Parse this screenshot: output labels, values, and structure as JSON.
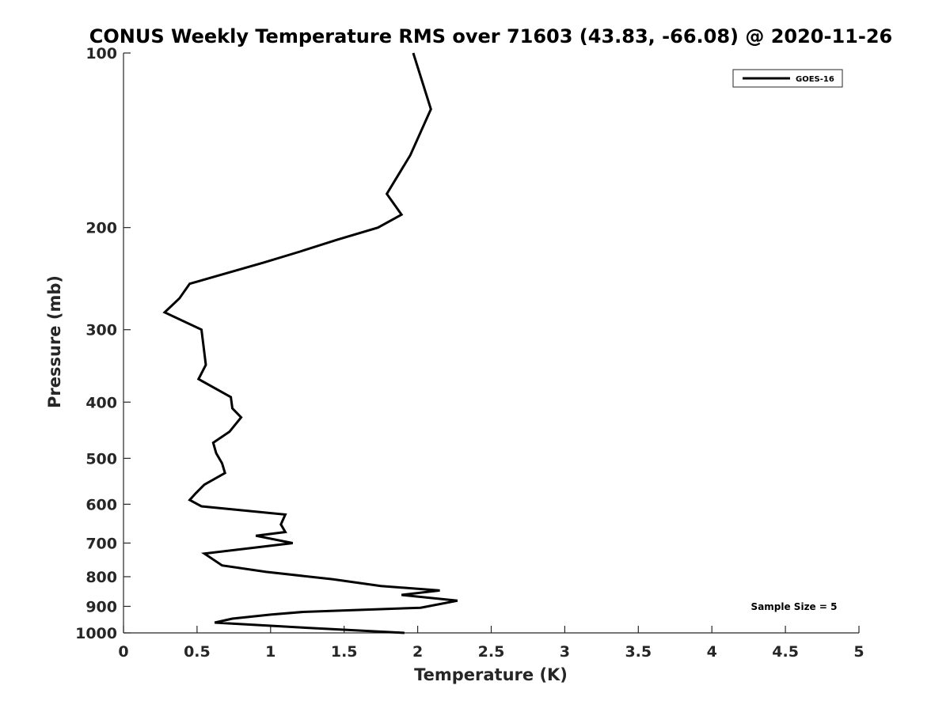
{
  "chart_data": {
    "type": "line",
    "title": "CONUS Weekly Temperature RMS over 71603 (43.83, -66.08) @ 2020-11-26",
    "xlabel": "Temperature (K)",
    "ylabel": "Pressure (mb)",
    "xlim": [
      0,
      5
    ],
    "ylim": [
      100,
      1000
    ],
    "y_scale": "log",
    "y_reversed": true,
    "grid": false,
    "x_ticks": [
      "0",
      "0.5",
      "1",
      "1.5",
      "2",
      "2.5",
      "3",
      "3.5",
      "4",
      "4.5",
      "5"
    ],
    "x_tick_values": [
      0,
      0.5,
      1,
      1.5,
      2,
      2.5,
      3,
      3.5,
      4,
      4.5,
      5
    ],
    "y_ticks": [
      "100",
      "200",
      "300",
      "400",
      "500",
      "600",
      "700",
      "800",
      "900",
      "1000"
    ],
    "y_tick_values": [
      100,
      200,
      300,
      400,
      500,
      600,
      700,
      800,
      900,
      1000
    ],
    "legend": {
      "position": "top-right",
      "entries": [
        "GOES-16"
      ]
    },
    "annotation": "Sample Size = 5",
    "series": [
      {
        "name": "GOES-16",
        "color": "#000000",
        "points": [
          [
            1.97,
            100
          ],
          [
            2.09,
            125
          ],
          [
            1.95,
            150
          ],
          [
            1.79,
            175
          ],
          [
            1.89,
            190
          ],
          [
            1.73,
            200
          ],
          [
            1.45,
            210
          ],
          [
            1.2,
            220
          ],
          [
            0.95,
            230
          ],
          [
            0.45,
            250
          ],
          [
            0.38,
            265
          ],
          [
            0.28,
            280
          ],
          [
            0.53,
            300
          ],
          [
            0.56,
            345
          ],
          [
            0.51,
            365
          ],
          [
            0.73,
            392
          ],
          [
            0.74,
            410
          ],
          [
            0.8,
            425
          ],
          [
            0.72,
            450
          ],
          [
            0.61,
            470
          ],
          [
            0.63,
            490
          ],
          [
            0.67,
            510
          ],
          [
            0.69,
            530
          ],
          [
            0.55,
            555
          ],
          [
            0.49,
            575
          ],
          [
            0.45,
            590
          ],
          [
            0.53,
            605
          ],
          [
            1.1,
            625
          ],
          [
            1.07,
            650
          ],
          [
            1.1,
            670
          ],
          [
            0.9,
            680
          ],
          [
            1.15,
            700
          ],
          [
            0.55,
            730
          ],
          [
            0.67,
            765
          ],
          [
            0.97,
            785
          ],
          [
            1.42,
            808
          ],
          [
            1.75,
            830
          ],
          [
            2.15,
            845
          ],
          [
            1.89,
            860
          ],
          [
            2.27,
            880
          ],
          [
            2.02,
            905
          ],
          [
            1.22,
            920
          ],
          [
            1.0,
            930
          ],
          [
            0.74,
            945
          ],
          [
            0.62,
            960
          ],
          [
            1.25,
            980
          ],
          [
            1.91,
            1000
          ]
        ]
      }
    ]
  }
}
